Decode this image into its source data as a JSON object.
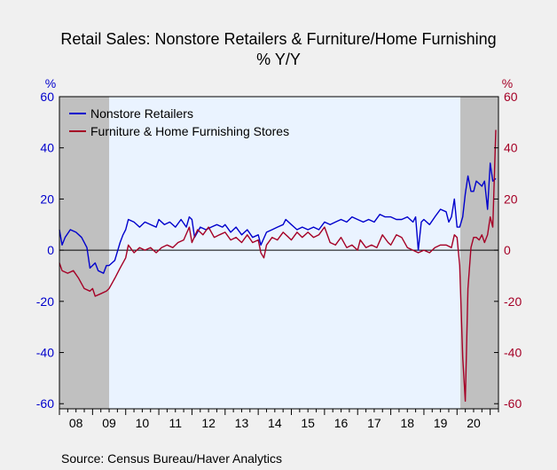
{
  "chart_data": {
    "type": "line",
    "title": "Retail Sales: Nonstore Retailers & Furniture/Home Furnishing",
    "subtitle": "% Y/Y",
    "y_left_unit": "%",
    "y_right_unit": "%",
    "ylim": [
      -62,
      60
    ],
    "yticks": [
      60,
      40,
      20,
      0,
      -20,
      -40,
      -60
    ],
    "xlim": [
      2008.0,
      2021.25
    ],
    "xtick_labels": [
      "08",
      "09",
      "10",
      "11",
      "12",
      "13",
      "14",
      "15",
      "16",
      "17",
      "18",
      "19",
      "20"
    ],
    "recessions": [
      [
        2008.0,
        2009.5
      ],
      [
        2020.1,
        2021.25
      ]
    ],
    "legend_position": "top-left",
    "source": "Source:  Census Bureau/Haver Analytics",
    "colors": {
      "nonstore": "#0000cc",
      "furniture": "#a50026",
      "recession": "#c0c0c0",
      "plot_bg": "#eaf3ff"
    },
    "series": [
      {
        "name": "Nonstore Retailers",
        "color": "#0000cc",
        "points": [
          [
            2008.0,
            8
          ],
          [
            2008.08,
            2
          ],
          [
            2008.17,
            5
          ],
          [
            2008.33,
            8
          ],
          [
            2008.5,
            7
          ],
          [
            2008.67,
            5
          ],
          [
            2008.83,
            1
          ],
          [
            2008.92,
            -7
          ],
          [
            2009.0,
            -6
          ],
          [
            2009.08,
            -5
          ],
          [
            2009.17,
            -8
          ],
          [
            2009.33,
            -9
          ],
          [
            2009.42,
            -6
          ],
          [
            2009.5,
            -6
          ],
          [
            2009.67,
            -4
          ],
          [
            2009.83,
            3
          ],
          [
            2009.92,
            6
          ],
          [
            2010.0,
            8
          ],
          [
            2010.08,
            12
          ],
          [
            2010.25,
            11
          ],
          [
            2010.42,
            9
          ],
          [
            2010.58,
            11
          ],
          [
            2010.75,
            10
          ],
          [
            2010.92,
            9
          ],
          [
            2011.0,
            12
          ],
          [
            2011.17,
            10
          ],
          [
            2011.33,
            11
          ],
          [
            2011.5,
            9
          ],
          [
            2011.67,
            12
          ],
          [
            2011.83,
            9
          ],
          [
            2011.92,
            13
          ],
          [
            2012.0,
            12
          ],
          [
            2012.08,
            5
          ],
          [
            2012.25,
            9
          ],
          [
            2012.42,
            8
          ],
          [
            2012.58,
            9
          ],
          [
            2012.75,
            10
          ],
          [
            2012.92,
            9
          ],
          [
            2013.0,
            10
          ],
          [
            2013.17,
            7
          ],
          [
            2013.33,
            9
          ],
          [
            2013.5,
            6
          ],
          [
            2013.67,
            8
          ],
          [
            2013.83,
            5
          ],
          [
            2014.0,
            6
          ],
          [
            2014.08,
            2
          ],
          [
            2014.25,
            7
          ],
          [
            2014.42,
            8
          ],
          [
            2014.58,
            9
          ],
          [
            2014.75,
            10
          ],
          [
            2014.83,
            12
          ],
          [
            2015.0,
            10
          ],
          [
            2015.17,
            8
          ],
          [
            2015.33,
            9
          ],
          [
            2015.5,
            8
          ],
          [
            2015.67,
            9
          ],
          [
            2015.83,
            8
          ],
          [
            2016.0,
            11
          ],
          [
            2016.17,
            10
          ],
          [
            2016.33,
            11
          ],
          [
            2016.5,
            12
          ],
          [
            2016.67,
            11
          ],
          [
            2016.83,
            13
          ],
          [
            2017.0,
            12
          ],
          [
            2017.17,
            11
          ],
          [
            2017.33,
            12
          ],
          [
            2017.5,
            11
          ],
          [
            2017.67,
            14
          ],
          [
            2017.83,
            13
          ],
          [
            2018.0,
            13
          ],
          [
            2018.17,
            12
          ],
          [
            2018.33,
            12
          ],
          [
            2018.5,
            13
          ],
          [
            2018.67,
            11
          ],
          [
            2018.75,
            13
          ],
          [
            2018.83,
            0
          ],
          [
            2018.92,
            11
          ],
          [
            2019.0,
            12
          ],
          [
            2019.17,
            10
          ],
          [
            2019.33,
            13
          ],
          [
            2019.5,
            16
          ],
          [
            2019.67,
            15
          ],
          [
            2019.75,
            11
          ],
          [
            2019.83,
            13
          ],
          [
            2019.92,
            20
          ],
          [
            2020.0,
            9
          ],
          [
            2020.08,
            9
          ],
          [
            2020.17,
            13
          ],
          [
            2020.25,
            22
          ],
          [
            2020.33,
            29
          ],
          [
            2020.42,
            23
          ],
          [
            2020.5,
            23
          ],
          [
            2020.58,
            27
          ],
          [
            2020.67,
            26
          ],
          [
            2020.75,
            25
          ],
          [
            2020.83,
            27
          ],
          [
            2020.92,
            16
          ],
          [
            2021.0,
            34
          ],
          [
            2021.08,
            27
          ],
          [
            2021.17,
            28
          ]
        ]
      },
      {
        "name": "Furniture & Home Furnishing Stores",
        "color": "#a50026",
        "points": [
          [
            2008.0,
            -5
          ],
          [
            2008.08,
            -8
          ],
          [
            2008.25,
            -9
          ],
          [
            2008.42,
            -8
          ],
          [
            2008.58,
            -11
          ],
          [
            2008.75,
            -15
          ],
          [
            2008.92,
            -16
          ],
          [
            2009.0,
            -15
          ],
          [
            2009.08,
            -18
          ],
          [
            2009.25,
            -17
          ],
          [
            2009.42,
            -16
          ],
          [
            2009.5,
            -15
          ],
          [
            2009.67,
            -11
          ],
          [
            2009.83,
            -7
          ],
          [
            2010.0,
            -3
          ],
          [
            2010.08,
            2
          ],
          [
            2010.25,
            -1
          ],
          [
            2010.42,
            1
          ],
          [
            2010.58,
            0
          ],
          [
            2010.75,
            1
          ],
          [
            2010.92,
            -1
          ],
          [
            2011.08,
            1
          ],
          [
            2011.25,
            2
          ],
          [
            2011.42,
            1
          ],
          [
            2011.58,
            3
          ],
          [
            2011.75,
            4
          ],
          [
            2011.92,
            9
          ],
          [
            2012.0,
            3
          ],
          [
            2012.17,
            8
          ],
          [
            2012.33,
            6
          ],
          [
            2012.5,
            9
          ],
          [
            2012.67,
            5
          ],
          [
            2012.83,
            6
          ],
          [
            2013.0,
            7
          ],
          [
            2013.17,
            4
          ],
          [
            2013.33,
            5
          ],
          [
            2013.5,
            3
          ],
          [
            2013.67,
            6
          ],
          [
            2013.83,
            3
          ],
          [
            2014.0,
            4
          ],
          [
            2014.08,
            -1
          ],
          [
            2014.17,
            -3
          ],
          [
            2014.25,
            2
          ],
          [
            2014.42,
            5
          ],
          [
            2014.58,
            4
          ],
          [
            2014.75,
            7
          ],
          [
            2014.92,
            5
          ],
          [
            2015.0,
            4
          ],
          [
            2015.17,
            7
          ],
          [
            2015.33,
            5
          ],
          [
            2015.5,
            7
          ],
          [
            2015.67,
            5
          ],
          [
            2015.83,
            6
          ],
          [
            2016.0,
            9
          ],
          [
            2016.17,
            3
          ],
          [
            2016.33,
            2
          ],
          [
            2016.5,
            5
          ],
          [
            2016.67,
            1
          ],
          [
            2016.83,
            2
          ],
          [
            2017.0,
            0
          ],
          [
            2017.08,
            4
          ],
          [
            2017.25,
            1
          ],
          [
            2017.42,
            2
          ],
          [
            2017.58,
            1
          ],
          [
            2017.75,
            6
          ],
          [
            2017.92,
            3
          ],
          [
            2018.0,
            2
          ],
          [
            2018.17,
            6
          ],
          [
            2018.33,
            5
          ],
          [
            2018.5,
            1
          ],
          [
            2018.67,
            0
          ],
          [
            2018.83,
            -1
          ],
          [
            2019.0,
            0
          ],
          [
            2019.17,
            -1
          ],
          [
            2019.33,
            1
          ],
          [
            2019.5,
            2
          ],
          [
            2019.67,
            2
          ],
          [
            2019.83,
            1
          ],
          [
            2019.92,
            6
          ],
          [
            2020.0,
            5
          ],
          [
            2020.08,
            -6
          ],
          [
            2020.17,
            -42
          ],
          [
            2020.25,
            -59
          ],
          [
            2020.33,
            -15
          ],
          [
            2020.42,
            1
          ],
          [
            2020.5,
            5
          ],
          [
            2020.58,
            5
          ],
          [
            2020.67,
            4
          ],
          [
            2020.75,
            6
          ],
          [
            2020.83,
            3
          ],
          [
            2020.92,
            6
          ],
          [
            2021.0,
            13
          ],
          [
            2021.08,
            9
          ],
          [
            2021.17,
            47
          ]
        ]
      }
    ]
  }
}
